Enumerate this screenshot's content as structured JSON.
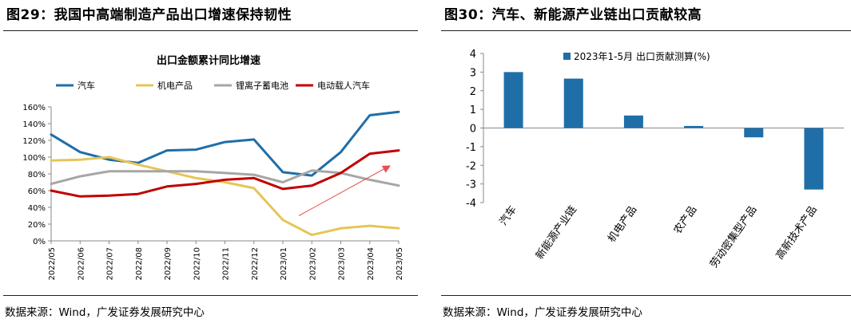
{
  "left": {
    "fig_title": "图29：我国中高端制造产品出口增速保持韧性",
    "source": "数据来源：Wind，广发证券发展研究中心",
    "chart_data": {
      "type": "line",
      "title": "出口金额累计同比增速",
      "categories": [
        "2022/05",
        "2022/06",
        "2022/07",
        "2022/08",
        "2022/09",
        "2022/10",
        "2022/11",
        "2022/12",
        "2023/01",
        "2023/02",
        "2023/03",
        "2023/04",
        "2023/05"
      ],
      "ylim": [
        0,
        160
      ],
      "yticks": [
        0,
        20,
        40,
        60,
        80,
        100,
        120,
        140,
        160
      ],
      "ytick_labels": [
        "0%",
        "20%",
        "40%",
        "60%",
        "80%",
        "100%",
        "120%",
        "140%",
        "160%"
      ],
      "grid": false,
      "legend_position": "top",
      "series": [
        {
          "name": "汽车",
          "color": "#1f6ea8",
          "values": [
            127,
            106,
            97,
            93,
            108,
            109,
            118,
            121,
            82,
            78,
            106,
            150,
            154
          ]
        },
        {
          "name": "机电产品",
          "color": "#e6c558",
          "values": [
            96,
            97,
            100,
            91,
            83,
            75,
            70,
            63,
            25,
            7,
            15,
            18,
            15
          ]
        },
        {
          "name": "锂离子蓄电池",
          "color": "#a6a6a6",
          "values": [
            68,
            77,
            83,
            83,
            83,
            83,
            81,
            79,
            70,
            84,
            81,
            73,
            66
          ]
        },
        {
          "name": "电动载人汽车",
          "color": "#c00000",
          "values": [
            60,
            53,
            54,
            56,
            65,
            68,
            73,
            75,
            62,
            66,
            81,
            104,
            108
          ]
        }
      ],
      "annotation": {
        "type": "arrow",
        "color": "#e85050",
        "from": [
          "2023/01",
          30
        ],
        "to": [
          "2023/05",
          90
        ]
      }
    }
  },
  "right": {
    "fig_title": "图30：汽车、新能源产业链出口贡献较高",
    "source": "数据来源：Wind，广发证券发展研究中心",
    "chart_data": {
      "type": "bar",
      "categories": [
        "汽车",
        "新能源产业链",
        "机电产品",
        "农产品",
        "劳动密集型产品",
        "高新技术产品"
      ],
      "series": [
        {
          "name": "2023年1-5月 出口贡献测算(%)",
          "color": "#1f6ea8",
          "values": [
            3.0,
            2.65,
            0.67,
            0.11,
            -0.5,
            -3.3
          ]
        }
      ],
      "ylim": [
        -4,
        4
      ],
      "yticks": [
        -4,
        -3,
        -2,
        -1,
        0,
        1,
        2,
        3,
        4
      ],
      "ytick_labels": [
        "-4",
        "-3",
        "-2",
        "-1",
        "0",
        "1",
        "2",
        "3",
        "4"
      ],
      "grid": false,
      "legend_position": "top"
    }
  }
}
